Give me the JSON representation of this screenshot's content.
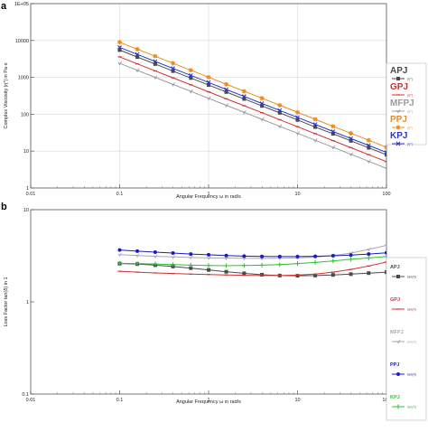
{
  "panels": {
    "a": "a",
    "b": "b"
  },
  "chart_data": [
    {
      "panel": "a",
      "type": "line",
      "title": "",
      "xlabel": "Angular Frequency ω in rad/s",
      "ylabel": "Complex Viscosity |η*| in Pa·s",
      "x_scale": "log",
      "y_scale": "log",
      "xlim": [
        0.01,
        100
      ],
      "ylim": [
        1,
        100000
      ],
      "xticks": [
        0.01,
        0.1,
        1,
        10,
        100
      ],
      "xtick_labels": [
        "0.01",
        "0.1",
        "1",
        "10",
        "100"
      ],
      "yticks": [
        1,
        10,
        100,
        1000,
        10000,
        100000
      ],
      "ytick_labels": [
        "1",
        "10",
        "100",
        "1000",
        "10000",
        "1E+05"
      ],
      "grid": true,
      "legend_position": "right",
      "x": [
        0.1,
        0.158,
        0.251,
        0.398,
        0.631,
        1,
        1.58,
        2.51,
        3.98,
        6.31,
        10,
        15.8,
        25.1,
        39.8,
        63.1,
        100
      ],
      "series": [
        {
          "name": "APJ",
          "legend_sub": "|η*|",
          "color": "#4a4a4a",
          "marker": "square",
          "values": [
            5500,
            3550,
            2300,
            1480,
            960,
            620,
            400,
            260,
            168,
            109,
            70,
            45,
            29.5,
            19,
            12.3,
            8
          ]
        },
        {
          "name": "GPJ",
          "legend_sub": "|η*|",
          "color": "#d03030",
          "marker": "dash",
          "values": [
            3600,
            2320,
            1500,
            970,
            630,
            405,
            262,
            170,
            110,
            71,
            46,
            29.7,
            19.2,
            12.4,
            8,
            5.2
          ]
        },
        {
          "name": "MFPJ",
          "legend_sub": "|η*|",
          "color": "#9a9a9a",
          "marker": "tick",
          "values": [
            2400,
            1550,
            1000,
            645,
            418,
            270,
            175,
            113,
            73,
            47,
            30.5,
            19.7,
            12.7,
            8.2,
            5.3,
            3.4
          ]
        },
        {
          "name": "PPJ",
          "legend_sub": "|η*|",
          "color": "#f08a1c",
          "marker": "star",
          "values": [
            9000,
            5800,
            3750,
            2420,
            1560,
            1010,
            650,
            420,
            272,
            176,
            113,
            73,
            47,
            30.5,
            19.7,
            12.7
          ]
        },
        {
          "name": "KPJ",
          "legend_sub": "|η*|",
          "color": "#2838c8",
          "marker": "x",
          "values": [
            6500,
            4200,
            2700,
            1750,
            1130,
            730,
            470,
            304,
            196,
            127,
            82,
            53,
            34,
            22,
            14.3,
            9.2
          ]
        }
      ]
    },
    {
      "panel": "b",
      "type": "line",
      "title": "",
      "xlabel": "Angular Frequency ω in rad/s",
      "ylabel": "Loss Factor tan(δ) in 1",
      "x_scale": "log",
      "y_scale": "log",
      "xlim": [
        0.01,
        100
      ],
      "ylim": [
        0.1,
        10
      ],
      "xticks": [
        0.01,
        0.1,
        1,
        10,
        100
      ],
      "xtick_labels": [
        "0.01",
        "0.1",
        "1",
        "10",
        "100"
      ],
      "yticks": [
        0.1,
        1,
        10
      ],
      "ytick_labels": [
        "0.1",
        "1",
        "10"
      ],
      "grid": false,
      "legend_position": "right",
      "x": [
        0.1,
        0.158,
        0.251,
        0.398,
        0.631,
        1,
        1.58,
        2.51,
        3.98,
        6.31,
        10,
        15.8,
        25.1,
        39.8,
        63.1,
        100
      ],
      "series": [
        {
          "name": "APJ",
          "legend_sub": "tan(δ)",
          "color": "#4a4a4a",
          "marker": "square",
          "values": [
            2.6,
            2.57,
            2.5,
            2.42,
            2.32,
            2.22,
            2.12,
            2.04,
            1.97,
            1.93,
            1.92,
            1.93,
            1.96,
            2.0,
            2.05,
            2.1
          ]
        },
        {
          "name": "GPJ",
          "legend_sub": "tan(δ)",
          "color": "#d03030",
          "marker": "dash",
          "values": [
            2.15,
            2.1,
            2.06,
            2.03,
            2.0,
            1.98,
            1.96,
            1.94,
            1.93,
            1.93,
            1.95,
            2.0,
            2.1,
            2.25,
            2.45,
            2.7
          ]
        },
        {
          "name": "MFPJ",
          "legend_sub": "tan(δ)",
          "color": "#aaaaaa",
          "marker": "tick",
          "values": [
            3.25,
            3.18,
            3.12,
            3.07,
            3.03,
            3.0,
            2.98,
            2.97,
            2.96,
            2.97,
            3.0,
            3.06,
            3.18,
            3.38,
            3.7,
            4.1
          ]
        },
        {
          "name": "PPJ",
          "legend_sub": "tan(δ)",
          "color": "#1a1ac8",
          "marker": "circle",
          "values": [
            3.65,
            3.55,
            3.46,
            3.38,
            3.3,
            3.24,
            3.18,
            3.14,
            3.11,
            3.1,
            3.1,
            3.12,
            3.16,
            3.22,
            3.3,
            3.4
          ]
        },
        {
          "name": "KPJ",
          "legend_sub": "tan(δ)",
          "color": "#30c030",
          "marker": "plus",
          "values": [
            2.62,
            2.6,
            2.57,
            2.54,
            2.5,
            2.48,
            2.47,
            2.48,
            2.5,
            2.54,
            2.6,
            2.68,
            2.78,
            2.9,
            3.0,
            3.1
          ]
        }
      ]
    }
  ]
}
